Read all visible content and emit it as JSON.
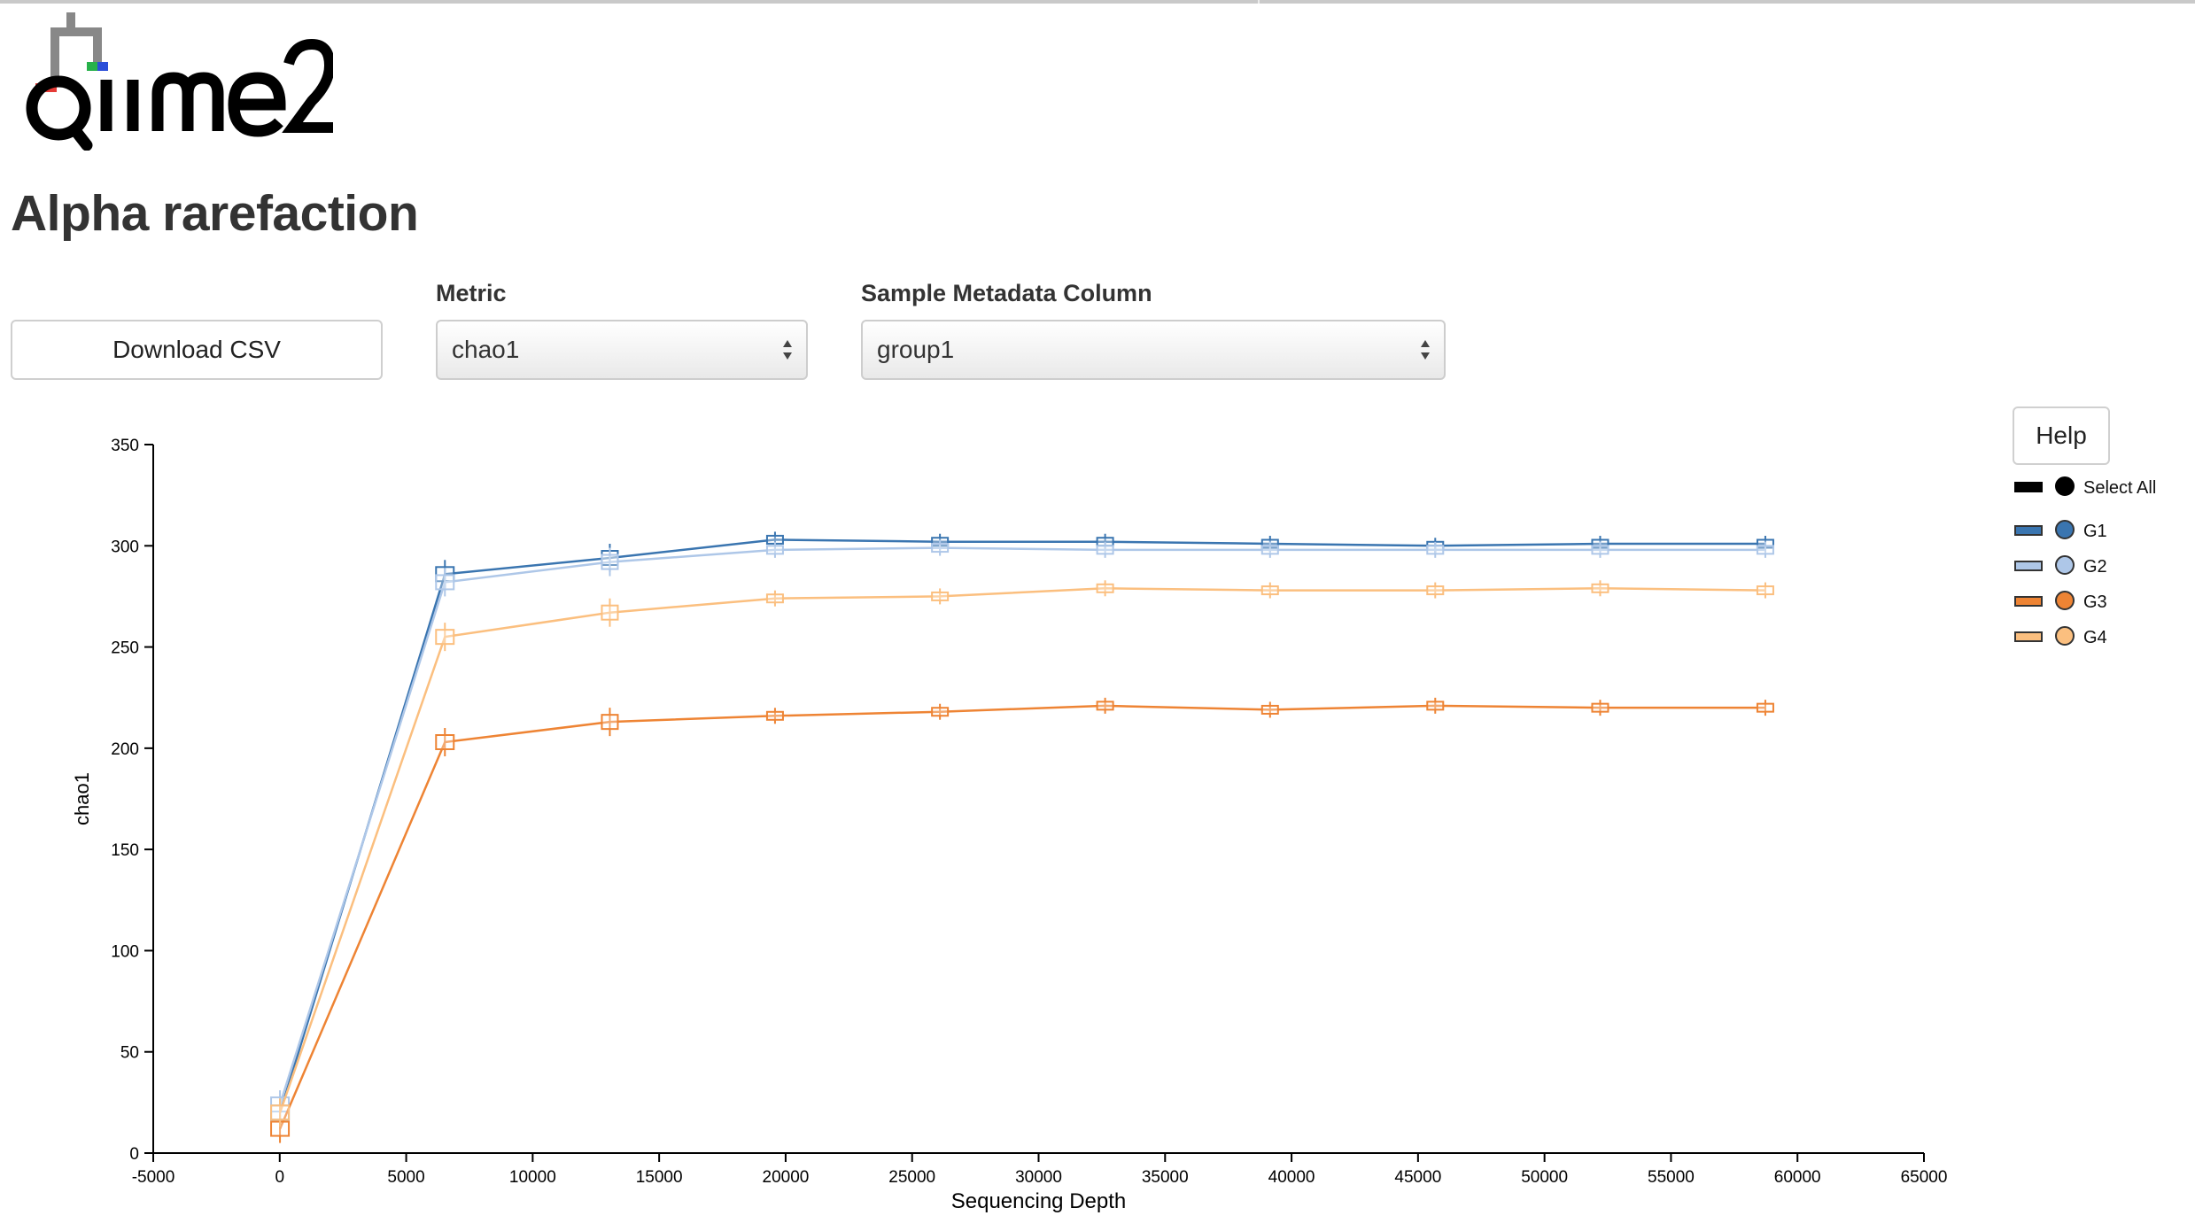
{
  "page": {
    "title": "Alpha rarefaction"
  },
  "controls": {
    "download_label": "Download CSV",
    "metric_label": "Metric",
    "metric_value": "chao1",
    "metadata_label": "Sample Metadata Column",
    "metadata_value": "group1",
    "help_label": "Help"
  },
  "legend": {
    "select_all": "Select All",
    "items": [
      {
        "label": "G1",
        "color": "#3a75b0"
      },
      {
        "label": "G2",
        "color": "#aec7e8"
      },
      {
        "label": "G3",
        "color": "#ee8434"
      },
      {
        "label": "G4",
        "color": "#fbbf7f"
      }
    ]
  },
  "chart_data": {
    "type": "line",
    "xlabel": "Sequencing Depth",
    "ylabel": "chao1",
    "xlim": [
      -5000,
      65000
    ],
    "ylim": [
      0,
      350
    ],
    "x_ticks": [
      -5000,
      0,
      5000,
      10000,
      15000,
      20000,
      25000,
      30000,
      35000,
      40000,
      45000,
      50000,
      55000,
      60000,
      65000
    ],
    "y_ticks": [
      0,
      50,
      100,
      150,
      200,
      250,
      300,
      350
    ],
    "x": [
      10,
      6530,
      13050,
      19580,
      26100,
      32630,
      39150,
      45680,
      52200,
      58730
    ],
    "series": [
      {
        "name": "G1",
        "color": "#3a75b0",
        "values": [
          20,
          286,
          294,
          303,
          302,
          302,
          301,
          300,
          301,
          301
        ]
      },
      {
        "name": "G2",
        "color": "#aec7e8",
        "values": [
          24,
          282,
          292,
          298,
          299,
          298,
          298,
          298,
          298,
          298
        ]
      },
      {
        "name": "G3",
        "color": "#ee8434",
        "values": [
          12,
          203,
          213,
          216,
          218,
          221,
          219,
          221,
          220,
          220
        ]
      },
      {
        "name": "G4",
        "color": "#fbbf7f",
        "values": [
          20,
          255,
          267,
          274,
          275,
          279,
          278,
          278,
          279,
          278
        ]
      }
    ]
  }
}
